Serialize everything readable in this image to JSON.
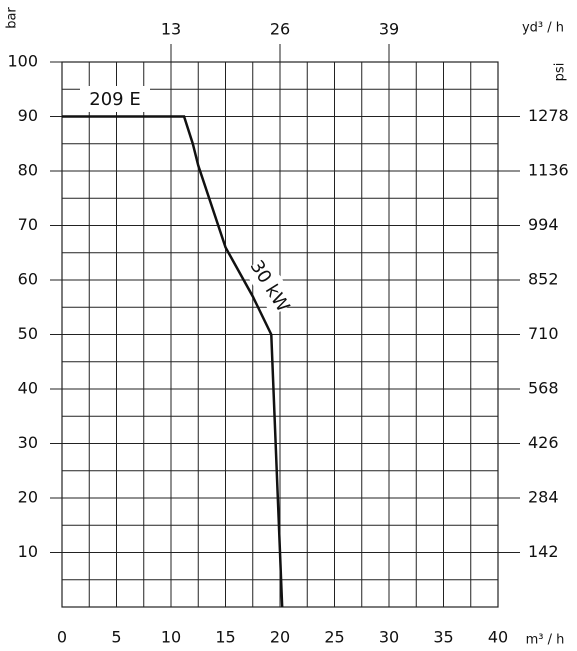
{
  "chart_data": {
    "type": "line",
    "annotations": [
      "209 E"
    ],
    "y_label": "bar",
    "y2_label": "psi",
    "x_label": "m³ / h",
    "x2_label": "yd³ / h",
    "x": [
      0,
      11.2,
      12,
      12.5,
      15,
      17.5,
      19.2,
      20.2
    ],
    "series": [
      {
        "name": "30 kW",
        "color": "#111111",
        "values": [
          90,
          90,
          85,
          81,
          66,
          57,
          50,
          0
        ]
      }
    ],
    "xlim": [
      0,
      40
    ],
    "ylim": [
      0,
      100
    ],
    "xticks": [
      0,
      5,
      10,
      15,
      20,
      25,
      30,
      35,
      40
    ],
    "yticks": [
      10,
      20,
      30,
      40,
      50,
      60,
      70,
      80,
      90,
      100
    ],
    "x2ticks": [
      {
        "value": 10,
        "label": "13"
      },
      {
        "value": 20,
        "label": "26"
      },
      {
        "value": 30,
        "label": "39"
      }
    ],
    "y2ticks": [
      {
        "value": 10,
        "label": "142"
      },
      {
        "value": 20,
        "label": "284"
      },
      {
        "value": 30,
        "label": "426"
      },
      {
        "value": 40,
        "label": "568"
      },
      {
        "value": 50,
        "label": "710"
      },
      {
        "value": 60,
        "label": "852"
      },
      {
        "value": 70,
        "label": "994"
      },
      {
        "value": 80,
        "label": "1136"
      },
      {
        "value": 90,
        "label": "1278"
      }
    ],
    "grid": true
  }
}
